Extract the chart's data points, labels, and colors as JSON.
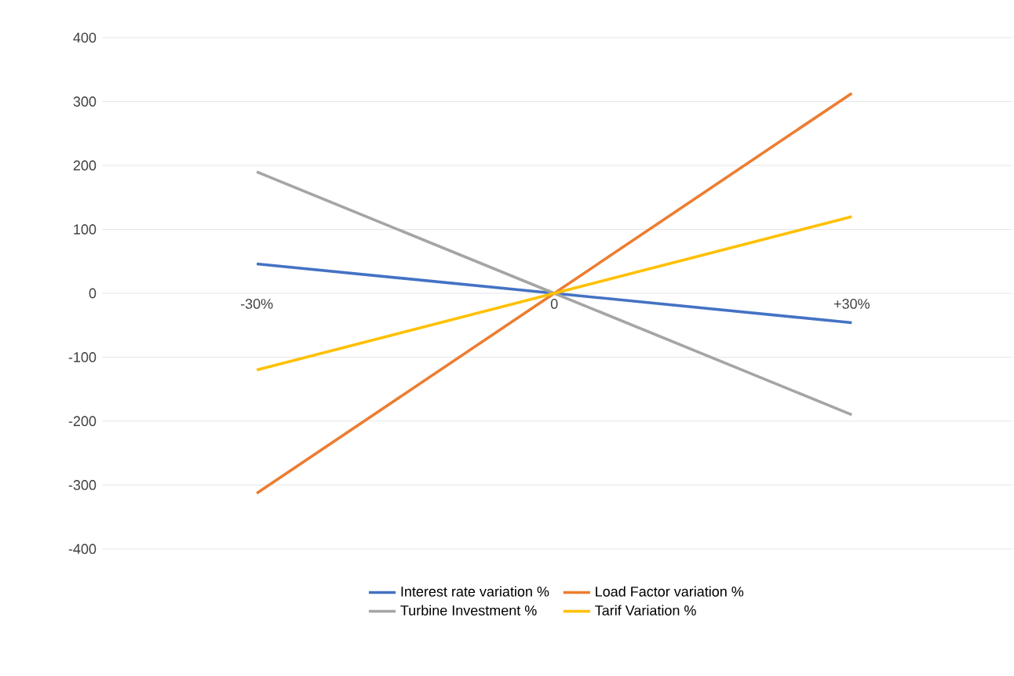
{
  "chart_data": {
    "type": "line",
    "categories": [
      "-30%",
      "0",
      "+30%"
    ],
    "series": [
      {
        "name": "Interest rate variation %",
        "color": "#4472c4",
        "values": [
          46,
          0,
          -46
        ]
      },
      {
        "name": "Load Factor variation %",
        "color": "#ed7d31",
        "values": [
          -313,
          0,
          313
        ]
      },
      {
        "name": "Turbine Investment %",
        "color": "#a5a5a5",
        "values": [
          190,
          0,
          -190
        ]
      },
      {
        "name": "Tarif Variation %",
        "color": "#ffc000",
        "values": [
          -120,
          0,
          120
        ]
      }
    ],
    "ylim": [
      -400,
      400
    ],
    "yticks": [
      -400,
      -300,
      -200,
      -100,
      0,
      100,
      200,
      300,
      400
    ],
    "grid": "y",
    "legend": "bottom",
    "marker": "none",
    "line_style": "solid"
  }
}
